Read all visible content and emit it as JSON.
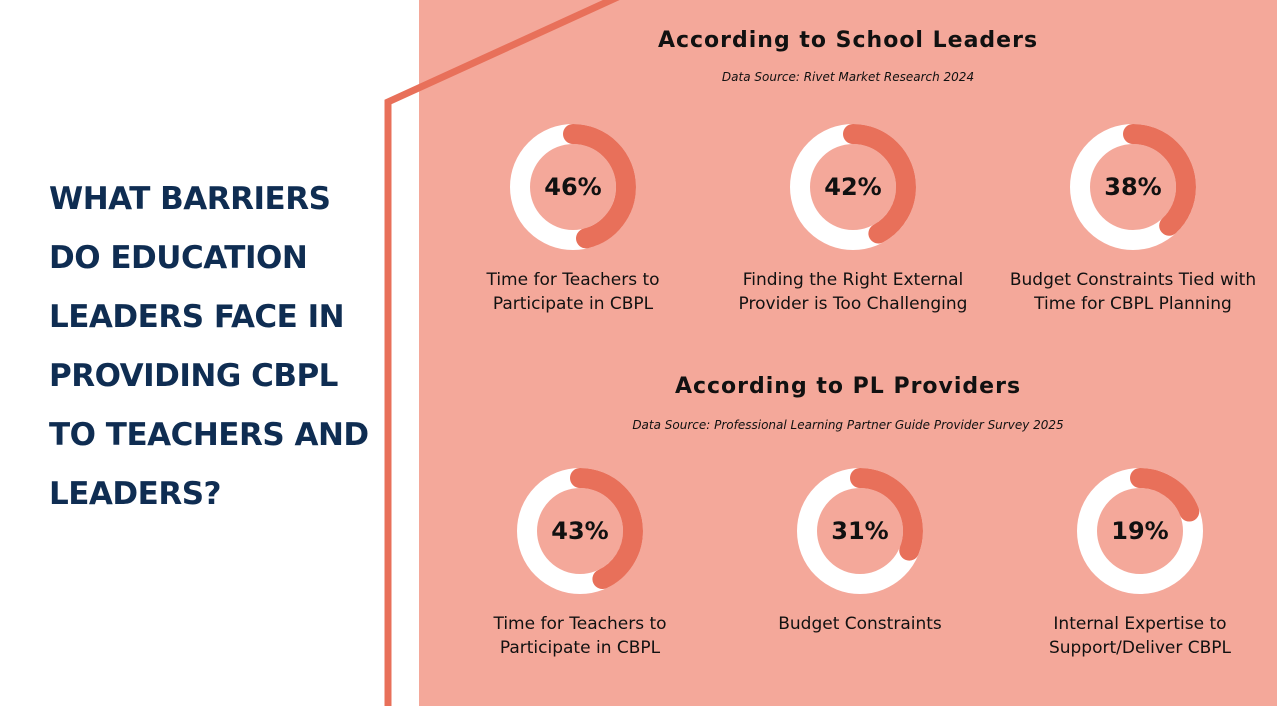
{
  "question": "WHAT BARRIERS DO EDUCATION LEADERS FACE IN PROVIDING CBPL TO TEACHERS AND LEADERS?",
  "colors": {
    "panel": "#f4a89a",
    "accent": "#e8705a",
    "ring_bg": "#ffffff",
    "navy": "#0f2d52"
  },
  "chart_data": [
    {
      "type": "pie",
      "title": "According to School Leaders",
      "subtitle": "Data Source: Rivet Market Research 2024",
      "categories": [
        "Time for Teachers to Participate in CBPL",
        "Finding the Right External Provider is Too Challenging",
        "Budget Constraints Tied with Time for CBPL Planning"
      ],
      "values": [
        46,
        42,
        38
      ],
      "value_labels": [
        "46%",
        "42%",
        "38%"
      ]
    },
    {
      "type": "pie",
      "title": "According to PL Providers",
      "subtitle": "Data Source: Professional Learning Partner Guide Provider Survey 2025",
      "categories": [
        "Time for Teachers to Participate in CBPL",
        "Budget Constraints",
        "Internal Expertise to Support/Deliver CBPL"
      ],
      "values": [
        43,
        31,
        19
      ],
      "value_labels": [
        "43%",
        "31%",
        "19%"
      ]
    }
  ]
}
